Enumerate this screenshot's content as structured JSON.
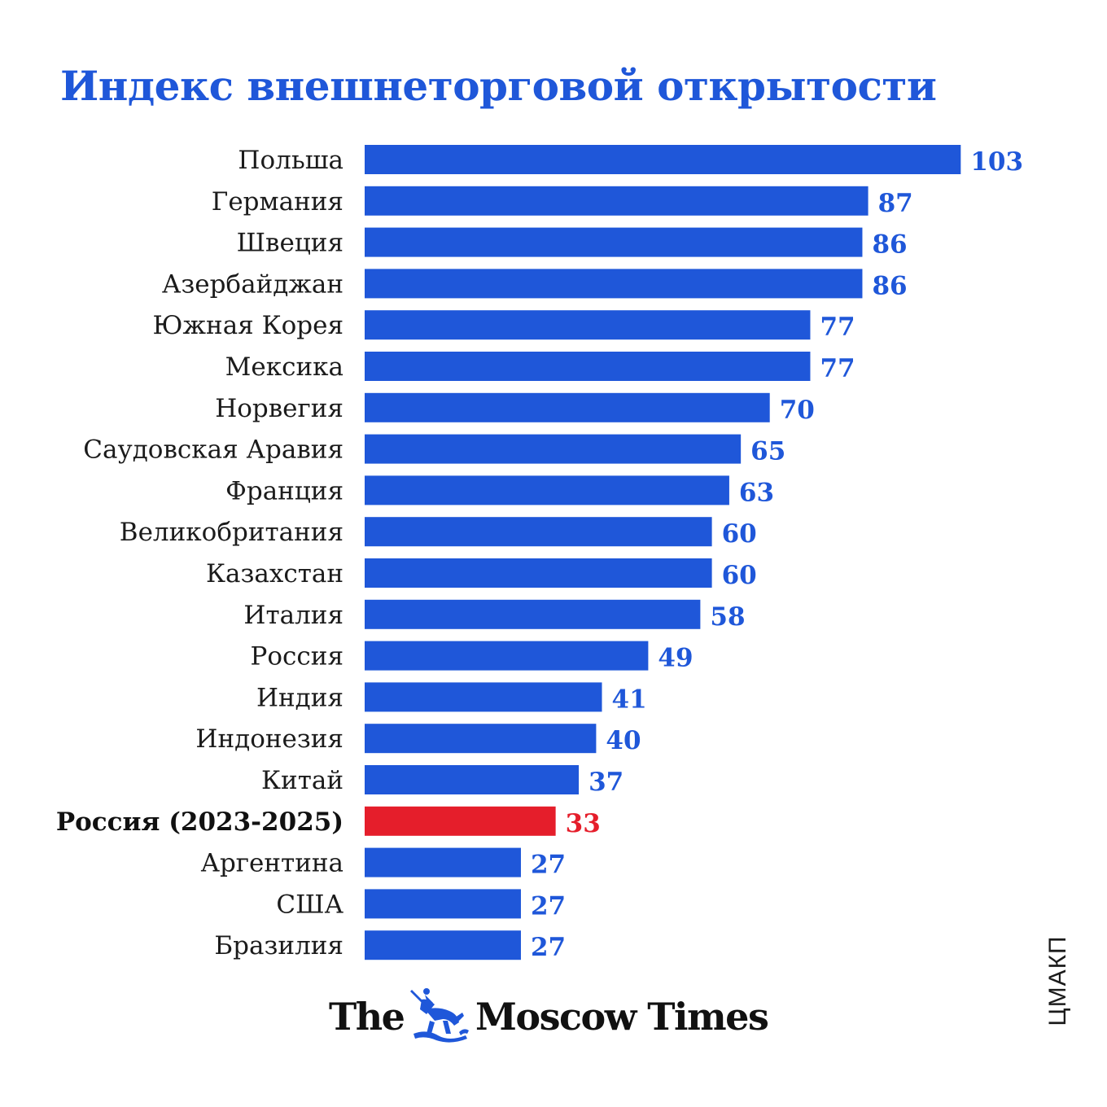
{
  "title": "Индекс внешнеторговой открытости",
  "source_label": "ЦМАКП",
  "logo": {
    "name_part1": "The",
    "name_part2": "Moscow Times"
  },
  "colors": {
    "bar": "#1f57d9",
    "highlight": "#e51e2b",
    "title": "#1f57d9",
    "value_text": "#1f57d9",
    "highlight_text": "#e51e2b"
  },
  "chart_data": {
    "type": "bar",
    "orientation": "horizontal",
    "title": "Индекс внешнеторговой открытости",
    "categories": [
      "Польша",
      "Германия",
      "Швеция",
      "Азербайджан",
      "Южная Корея",
      "Мексика",
      "Норвегия",
      "Саудовская Аравия",
      "Франция",
      "Великобритания",
      "Казахстан",
      "Италия",
      "Россия",
      "Индия",
      "Индонезия",
      "Китай",
      "Россия (2023-2025)",
      "Аргентина",
      "США",
      "Бразилия"
    ],
    "values": [
      103,
      87,
      86,
      86,
      77,
      77,
      70,
      65,
      63,
      60,
      60,
      58,
      49,
      41,
      40,
      37,
      33,
      27,
      27,
      27
    ],
    "highlight_category": "Россия (2023-2025)",
    "grid": false,
    "legend": "none",
    "data_labels": true
  }
}
